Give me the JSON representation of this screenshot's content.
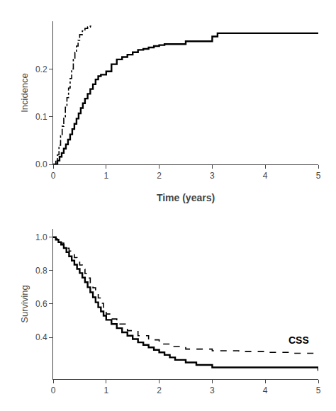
{
  "chart_data": [
    {
      "type": "step",
      "xlabel": "Time (years)",
      "ylabel": "Incidence",
      "xlim": [
        0,
        5
      ],
      "ylim": [
        0.0,
        0.3
      ],
      "xticks": [
        0,
        1,
        2,
        3,
        4,
        5
      ],
      "yticks": [
        {
          "value": 0.0,
          "label": "0.0"
        },
        0.1,
        0.2
      ],
      "grid": false,
      "series": [
        {
          "color": "#000000",
          "line_style": "solid",
          "x": [
            0,
            0.08,
            0.12,
            0.16,
            0.2,
            0.24,
            0.28,
            0.32,
            0.36,
            0.4,
            0.44,
            0.48,
            0.52,
            0.56,
            0.6,
            0.65,
            0.7,
            0.75,
            0.8,
            0.85,
            0.9,
            1.0,
            1.1,
            1.2,
            1.3,
            1.4,
            1.5,
            1.6,
            1.7,
            1.8,
            1.9,
            2.0,
            2.1,
            2.5,
            3.0,
            3.1,
            5.0
          ],
          "values": [
            0,
            0.008,
            0.016,
            0.024,
            0.033,
            0.042,
            0.052,
            0.063,
            0.074,
            0.085,
            0.096,
            0.107,
            0.118,
            0.128,
            0.138,
            0.148,
            0.158,
            0.168,
            0.178,
            0.185,
            0.188,
            0.195,
            0.21,
            0.22,
            0.225,
            0.23,
            0.235,
            0.24,
            0.242,
            0.245,
            0.248,
            0.25,
            0.252,
            0.258,
            0.268,
            0.275,
            0.275
          ]
        },
        {
          "color": "#000000",
          "line_style": "dashdot",
          "x": [
            0,
            0.05,
            0.08,
            0.11,
            0.14,
            0.17,
            0.2,
            0.23,
            0.26,
            0.29,
            0.32,
            0.35,
            0.38,
            0.41,
            0.44,
            0.47,
            0.5,
            0.55,
            0.6,
            0.65,
            0.7,
            0.75
          ],
          "values": [
            0,
            0.01,
            0.02,
            0.04,
            0.06,
            0.08,
            0.1,
            0.12,
            0.14,
            0.16,
            0.18,
            0.2,
            0.22,
            0.235,
            0.248,
            0.26,
            0.272,
            0.28,
            0.285,
            0.288,
            0.29,
            0.29
          ]
        }
      ]
    },
    {
      "type": "step",
      "ylabel": "Surviving",
      "xlim": [
        0,
        5
      ],
      "ylim": [
        0.15,
        1.05
      ],
      "xticks": [
        0,
        1,
        2,
        3,
        4,
        5
      ],
      "yticks": [
        0.4,
        0.6,
        0.8,
        {
          "value": 1.0,
          "label": "1.0"
        }
      ],
      "grid": false,
      "annotations": [
        {
          "text": "CSS",
          "x": 4.85,
          "y": 0.385
        }
      ],
      "series": [
        {
          "color": "#000000",
          "line_style": "solid",
          "x": [
            0,
            0.05,
            0.1,
            0.15,
            0.2,
            0.25,
            0.3,
            0.35,
            0.4,
            0.45,
            0.5,
            0.55,
            0.6,
            0.65,
            0.7,
            0.75,
            0.8,
            0.85,
            0.9,
            0.95,
            1.0,
            1.1,
            1.2,
            1.3,
            1.4,
            1.5,
            1.6,
            1.7,
            1.8,
            1.9,
            2.0,
            2.1,
            2.2,
            2.3,
            2.5,
            2.7,
            3.0,
            5.0
          ],
          "values": [
            1.0,
            0.985,
            0.97,
            0.955,
            0.935,
            0.91,
            0.885,
            0.86,
            0.835,
            0.81,
            0.785,
            0.758,
            0.73,
            0.7,
            0.67,
            0.64,
            0.61,
            0.58,
            0.555,
            0.53,
            0.505,
            0.48,
            0.455,
            0.43,
            0.41,
            0.39,
            0.37,
            0.355,
            0.34,
            0.325,
            0.31,
            0.295,
            0.28,
            0.265,
            0.25,
            0.235,
            0.22,
            0.2
          ]
        },
        {
          "color": "#000000",
          "line_style": "dashed",
          "x": [
            0,
            0.05,
            0.1,
            0.15,
            0.2,
            0.25,
            0.3,
            0.35,
            0.4,
            0.45,
            0.5,
            0.55,
            0.6,
            0.65,
            0.7,
            0.75,
            0.8,
            0.85,
            0.9,
            0.95,
            1.0,
            1.1,
            1.2,
            1.4,
            1.6,
            1.8,
            2.0,
            2.2,
            2.5,
            3.0,
            3.5,
            4.0,
            4.5,
            5.0
          ],
          "values": [
            1.0,
            0.99,
            0.978,
            0.965,
            0.95,
            0.934,
            0.917,
            0.898,
            0.878,
            0.856,
            0.833,
            0.808,
            0.782,
            0.755,
            0.726,
            0.697,
            0.667,
            0.636,
            0.604,
            0.572,
            0.54,
            0.51,
            0.48,
            0.44,
            0.41,
            0.385,
            0.36,
            0.345,
            0.33,
            0.32,
            0.315,
            0.31,
            0.305,
            0.3
          ]
        }
      ]
    }
  ]
}
